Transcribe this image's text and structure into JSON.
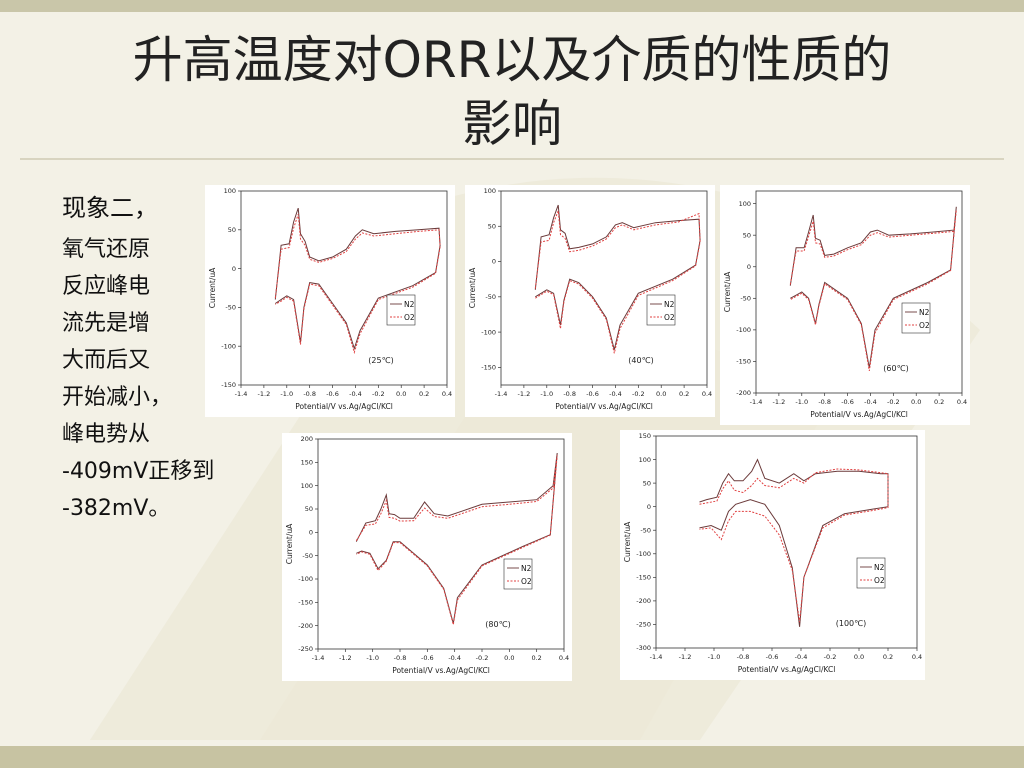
{
  "slide": {
    "title_line1": "升高温度对ORR以及介质的性质的",
    "title_line2": "影响",
    "body_lines": [
      "现象二，",
      "氧气还原",
      "反应峰电",
      "流先是增",
      "大而后又",
      "开始减小，",
      "峰电势从",
      "-409mV正移到",
      "-382mV。"
    ]
  },
  "colors": {
    "background": "#f3f1e6",
    "band_top": "#c9c6a9",
    "band_bottom": "#c7c3a2",
    "curve_n2": "#6b3a3a",
    "curve_o2": "#e04040"
  },
  "chart_data": [
    {
      "type": "line",
      "id": "chart-25",
      "annotation": "(25℃)",
      "xlabel": "Potential/V vs.Ag/AgCl/KCl",
      "ylabel": "Current/uA",
      "xlim": [
        -1.4,
        0.4
      ],
      "ylim": [
        -150,
        100
      ],
      "xticks": [
        "-1.4",
        "-1.2",
        "-1.0",
        "-0.8",
        "-0.6",
        "-0.4",
        "-0.2",
        "0.0",
        "0.2",
        "0.4"
      ],
      "yticks": [
        "100",
        "50",
        "0",
        "-50",
        "-100",
        "-150"
      ],
      "legend": [
        "N2",
        "O2"
      ],
      "series": [
        {
          "name": "N2",
          "x": [
            -1.1,
            -1.05,
            -0.98,
            -0.94,
            -0.9,
            -0.88,
            -0.84,
            -0.8,
            -0.72,
            -0.6,
            -0.48,
            -0.4,
            -0.34,
            -0.24,
            -0.05,
            0.15,
            0.33,
            0.34,
            0.3,
            0.1,
            -0.2,
            -0.36,
            -0.41,
            -0.48,
            -0.6,
            -0.72,
            -0.8,
            -0.85,
            -0.88,
            -0.94,
            -1.0,
            -1.05,
            -1.1
          ],
          "y": [
            -40,
            30,
            32,
            60,
            78,
            45,
            35,
            15,
            10,
            15,
            25,
            42,
            50,
            45,
            48,
            50,
            52,
            30,
            -5,
            -22,
            -38,
            -80,
            -103,
            -70,
            -45,
            -20,
            -18,
            -50,
            -95,
            -40,
            -35,
            -40,
            -45
          ]
        },
        {
          "name": "O2",
          "x": [
            -1.1,
            -1.05,
            -0.98,
            -0.94,
            -0.9,
            -0.88,
            -0.84,
            -0.8,
            -0.72,
            -0.6,
            -0.48,
            -0.4,
            -0.34,
            -0.24,
            -0.05,
            0.15,
            0.33,
            0.34,
            0.3,
            0.1,
            -0.2,
            -0.36,
            -0.41,
            -0.48,
            -0.6,
            -0.72,
            -0.8,
            -0.85,
            -0.88,
            -0.94,
            -1.0,
            -1.05,
            -1.1
          ],
          "y": [
            -38,
            25,
            27,
            52,
            70,
            38,
            30,
            12,
            8,
            13,
            22,
            38,
            46,
            42,
            45,
            48,
            50,
            28,
            -6,
            -24,
            -40,
            -84,
            -108,
            -72,
            -47,
            -22,
            -20,
            -52,
            -98,
            -42,
            -37,
            -42,
            -46
          ]
        }
      ]
    },
    {
      "type": "line",
      "id": "chart-40",
      "annotation": "(40℃)",
      "xlabel": "Potential/V vs.Ag/AgCl/KCl",
      "ylabel": "Current/uA",
      "xlim": [
        -1.4,
        0.4
      ],
      "ylim": [
        -175,
        100
      ],
      "xticks": [
        "-1.4",
        "-1.2",
        "-1.0",
        "-0.8",
        "-0.6",
        "-0.4",
        "-0.2",
        "0.0",
        "0.2",
        "0.4"
      ],
      "yticks": [
        "100",
        "50",
        "0",
        "-50",
        "-100",
        "-150"
      ],
      "legend": [
        "N2",
        "O2"
      ],
      "series": [
        {
          "name": "N2",
          "x": [
            -1.1,
            -1.05,
            -0.98,
            -0.94,
            -0.9,
            -0.88,
            -0.84,
            -0.8,
            -0.72,
            -0.6,
            -0.48,
            -0.4,
            -0.34,
            -0.24,
            -0.05,
            0.15,
            0.33,
            0.34,
            0.3,
            0.1,
            -0.2,
            -0.36,
            -0.41,
            -0.48,
            -0.6,
            -0.72,
            -0.8,
            -0.85,
            -0.88,
            -0.94,
            -1.0,
            -1.05,
            -1.1
          ],
          "y": [
            -40,
            35,
            38,
            62,
            80,
            45,
            40,
            18,
            20,
            25,
            35,
            52,
            55,
            48,
            55,
            58,
            60,
            30,
            -5,
            -25,
            -45,
            -90,
            -125,
            -80,
            -50,
            -30,
            -25,
            -55,
            -90,
            -45,
            -40,
            -45,
            -50
          ]
        },
        {
          "name": "O2",
          "x": [
            -1.1,
            -1.05,
            -0.98,
            -0.94,
            -0.9,
            -0.88,
            -0.84,
            -0.8,
            -0.72,
            -0.6,
            -0.48,
            -0.4,
            -0.34,
            -0.24,
            -0.05,
            0.15,
            0.33,
            0.34,
            0.3,
            0.1,
            -0.2,
            -0.36,
            -0.41,
            -0.48,
            -0.6,
            -0.72,
            -0.8,
            -0.85,
            -0.88,
            -0.94,
            -1.0,
            -1.05,
            -1.1
          ],
          "y": [
            -38,
            28,
            30,
            55,
            72,
            38,
            33,
            14,
            16,
            22,
            32,
            48,
            52,
            45,
            52,
            56,
            68,
            28,
            -6,
            -27,
            -48,
            -95,
            -130,
            -82,
            -52,
            -32,
            -27,
            -57,
            -95,
            -47,
            -42,
            -47,
            -52
          ]
        }
      ]
    },
    {
      "type": "line",
      "id": "chart-60",
      "annotation": "(60℃)",
      "xlabel": "Potential/V vs.Ag/AgCl/KCl",
      "ylabel": "Current/uA",
      "xlim": [
        -1.4,
        0.4
      ],
      "ylim": [
        -200,
        120
      ],
      "xticks": [
        "-1.4",
        "-1.2",
        "-1.0",
        "-0.8",
        "-0.6",
        "-0.4",
        "-0.2",
        "0.0",
        "0.2",
        "0.4"
      ],
      "yticks": [
        "100",
        "50",
        "0",
        "-50",
        "-100",
        "-150",
        "-200"
      ],
      "legend": [
        "N2",
        "O2"
      ],
      "series": [
        {
          "name": "N2",
          "x": [
            -1.1,
            -1.05,
            -0.98,
            -0.94,
            -0.9,
            -0.88,
            -0.84,
            -0.8,
            -0.72,
            -0.6,
            -0.48,
            -0.4,
            -0.34,
            -0.24,
            -0.05,
            0.15,
            0.33,
            0.35,
            0.3,
            0.1,
            -0.2,
            -0.36,
            -0.41,
            -0.48,
            -0.6,
            -0.72,
            -0.8,
            -0.85,
            -0.88,
            -0.94,
            -1.0,
            -1.05,
            -1.1
          ],
          "y": [
            -30,
            30,
            30,
            55,
            82,
            45,
            42,
            18,
            20,
            30,
            38,
            55,
            58,
            50,
            52,
            55,
            58,
            95,
            -5,
            -25,
            -50,
            -100,
            -160,
            -90,
            -50,
            -35,
            -25,
            -60,
            -90,
            -50,
            -40,
            -45,
            -50
          ]
        },
        {
          "name": "O2",
          "x": [
            -1.1,
            -1.05,
            -0.98,
            -0.94,
            -0.9,
            -0.88,
            -0.84,
            -0.8,
            -0.72,
            -0.6,
            -0.48,
            -0.4,
            -0.34,
            -0.24,
            -0.05,
            0.15,
            0.33,
            0.35,
            0.3,
            0.1,
            -0.2,
            -0.36,
            -0.41,
            -0.48,
            -0.6,
            -0.72,
            -0.8,
            -0.85,
            -0.88,
            -0.94,
            -1.0,
            -1.05,
            -1.1
          ],
          "y": [
            -28,
            25,
            25,
            48,
            72,
            38,
            36,
            15,
            17,
            27,
            35,
            50,
            54,
            47,
            50,
            53,
            56,
            90,
            -6,
            -27,
            -52,
            -105,
            -165,
            -92,
            -52,
            -37,
            -27,
            -62,
            -92,
            -52,
            -42,
            -47,
            -52
          ]
        }
      ]
    },
    {
      "type": "line",
      "id": "chart-80",
      "annotation": "(80℃)",
      "xlabel": "Potential/V vs.Ag/AgCl/KCl",
      "ylabel": "Current/uA",
      "xlim": [
        -1.4,
        0.4
      ],
      "ylim": [
        -250,
        200
      ],
      "xticks": [
        "-1.4",
        "-1.2",
        "-1.0",
        "-0.8",
        "-0.6",
        "-0.4",
        "-0.2",
        "0.0",
        "0.2",
        "0.4"
      ],
      "yticks": [
        "200",
        "150",
        "100",
        "50",
        "0",
        "-50",
        "-100",
        "-150",
        "-200",
        "-250"
      ],
      "legend": [
        "N2",
        "O2"
      ],
      "series": [
        {
          "name": "N2",
          "x": [
            -1.12,
            -1.05,
            -0.98,
            -0.94,
            -0.9,
            -0.88,
            -0.84,
            -0.8,
            -0.7,
            -0.62,
            -0.55,
            -0.45,
            -0.35,
            -0.2,
            0.0,
            0.2,
            0.32,
            0.35,
            0.3,
            0.1,
            -0.2,
            -0.38,
            -0.41,
            -0.48,
            -0.6,
            -0.72,
            -0.8,
            -0.85,
            -0.9,
            -0.96,
            -1.02,
            -1.08,
            -1.12
          ],
          "y": [
            -20,
            20,
            25,
            50,
            80,
            40,
            38,
            30,
            30,
            65,
            40,
            35,
            45,
            60,
            65,
            70,
            100,
            170,
            -5,
            -30,
            -70,
            -140,
            -195,
            -120,
            -70,
            -40,
            -20,
            -20,
            -60,
            -78,
            -45,
            -40,
            -45
          ]
        },
        {
          "name": "O2",
          "x": [
            -1.12,
            -1.05,
            -0.98,
            -0.94,
            -0.9,
            -0.88,
            -0.84,
            -0.8,
            -0.7,
            -0.62,
            -0.55,
            -0.45,
            -0.35,
            -0.2,
            0.0,
            0.2,
            0.32,
            0.35,
            0.3,
            0.1,
            -0.2,
            -0.38,
            -0.41,
            -0.48,
            -0.6,
            -0.72,
            -0.8,
            -0.85,
            -0.9,
            -0.96,
            -1.02,
            -1.08,
            -1.12
          ],
          "y": [
            -18,
            15,
            18,
            40,
            68,
            32,
            30,
            24,
            25,
            52,
            34,
            30,
            40,
            55,
            60,
            66,
            95,
            165,
            -6,
            -32,
            -72,
            -145,
            -198,
            -122,
            -72,
            -42,
            -22,
            -22,
            -62,
            -82,
            -47,
            -42,
            -47
          ]
        }
      ]
    },
    {
      "type": "line",
      "id": "chart-100",
      "annotation": "(100℃)",
      "xlabel": "Potential/V vs.Ag/AgCl/KCl",
      "ylabel": "Current/uA",
      "xlim": [
        -1.4,
        0.4
      ],
      "ylim": [
        -300,
        150
      ],
      "xticks": [
        "-1.4",
        "-1.2",
        "-1.0",
        "-0.8",
        "-0.6",
        "-0.4",
        "-0.2",
        "0.0",
        "0.2",
        "0.4"
      ],
      "yticks": [
        "150",
        "100",
        "50",
        "0",
        "-50",
        "-100",
        "-150",
        "-200",
        "-250",
        "-300"
      ],
      "legend": [
        "N2",
        "O2"
      ],
      "series": [
        {
          "name": "N2",
          "x": [
            -1.1,
            -1.05,
            -0.98,
            -0.94,
            -0.9,
            -0.86,
            -0.8,
            -0.74,
            -0.7,
            -0.65,
            -0.55,
            -0.45,
            -0.38,
            -0.3,
            -0.15,
            0.0,
            0.15,
            0.2,
            0.2,
            0.1,
            -0.1,
            -0.25,
            -0.38,
            -0.41,
            -0.46,
            -0.55,
            -0.65,
            -0.75,
            -0.85,
            -0.9,
            -0.95,
            -1.02,
            -1.1
          ],
          "y": [
            10,
            15,
            20,
            50,
            70,
            55,
            55,
            75,
            100,
            60,
            50,
            70,
            55,
            70,
            75,
            75,
            70,
            70,
            0,
            -5,
            -15,
            -40,
            -150,
            -255,
            -130,
            -40,
            5,
            15,
            5,
            -10,
            -50,
            -40,
            -45
          ]
        },
        {
          "name": "O2",
          "x": [
            -1.1,
            -1.05,
            -0.98,
            -0.94,
            -0.9,
            -0.86,
            -0.8,
            -0.74,
            -0.7,
            -0.65,
            -0.55,
            -0.45,
            -0.38,
            -0.3,
            -0.15,
            0.0,
            0.15,
            0.2,
            0.2,
            0.1,
            -0.1,
            -0.25,
            -0.38,
            -0.41,
            -0.46,
            -0.55,
            -0.65,
            -0.75,
            -0.85,
            -0.9,
            -0.95,
            -1.02,
            -1.1
          ],
          "y": [
            5,
            8,
            12,
            38,
            55,
            35,
            30,
            45,
            60,
            45,
            40,
            60,
            50,
            72,
            80,
            78,
            72,
            70,
            -2,
            -8,
            -18,
            -45,
            -150,
            -245,
            -135,
            -60,
            -20,
            -10,
            -10,
            -30,
            -70,
            -45,
            -48
          ]
        }
      ]
    }
  ]
}
